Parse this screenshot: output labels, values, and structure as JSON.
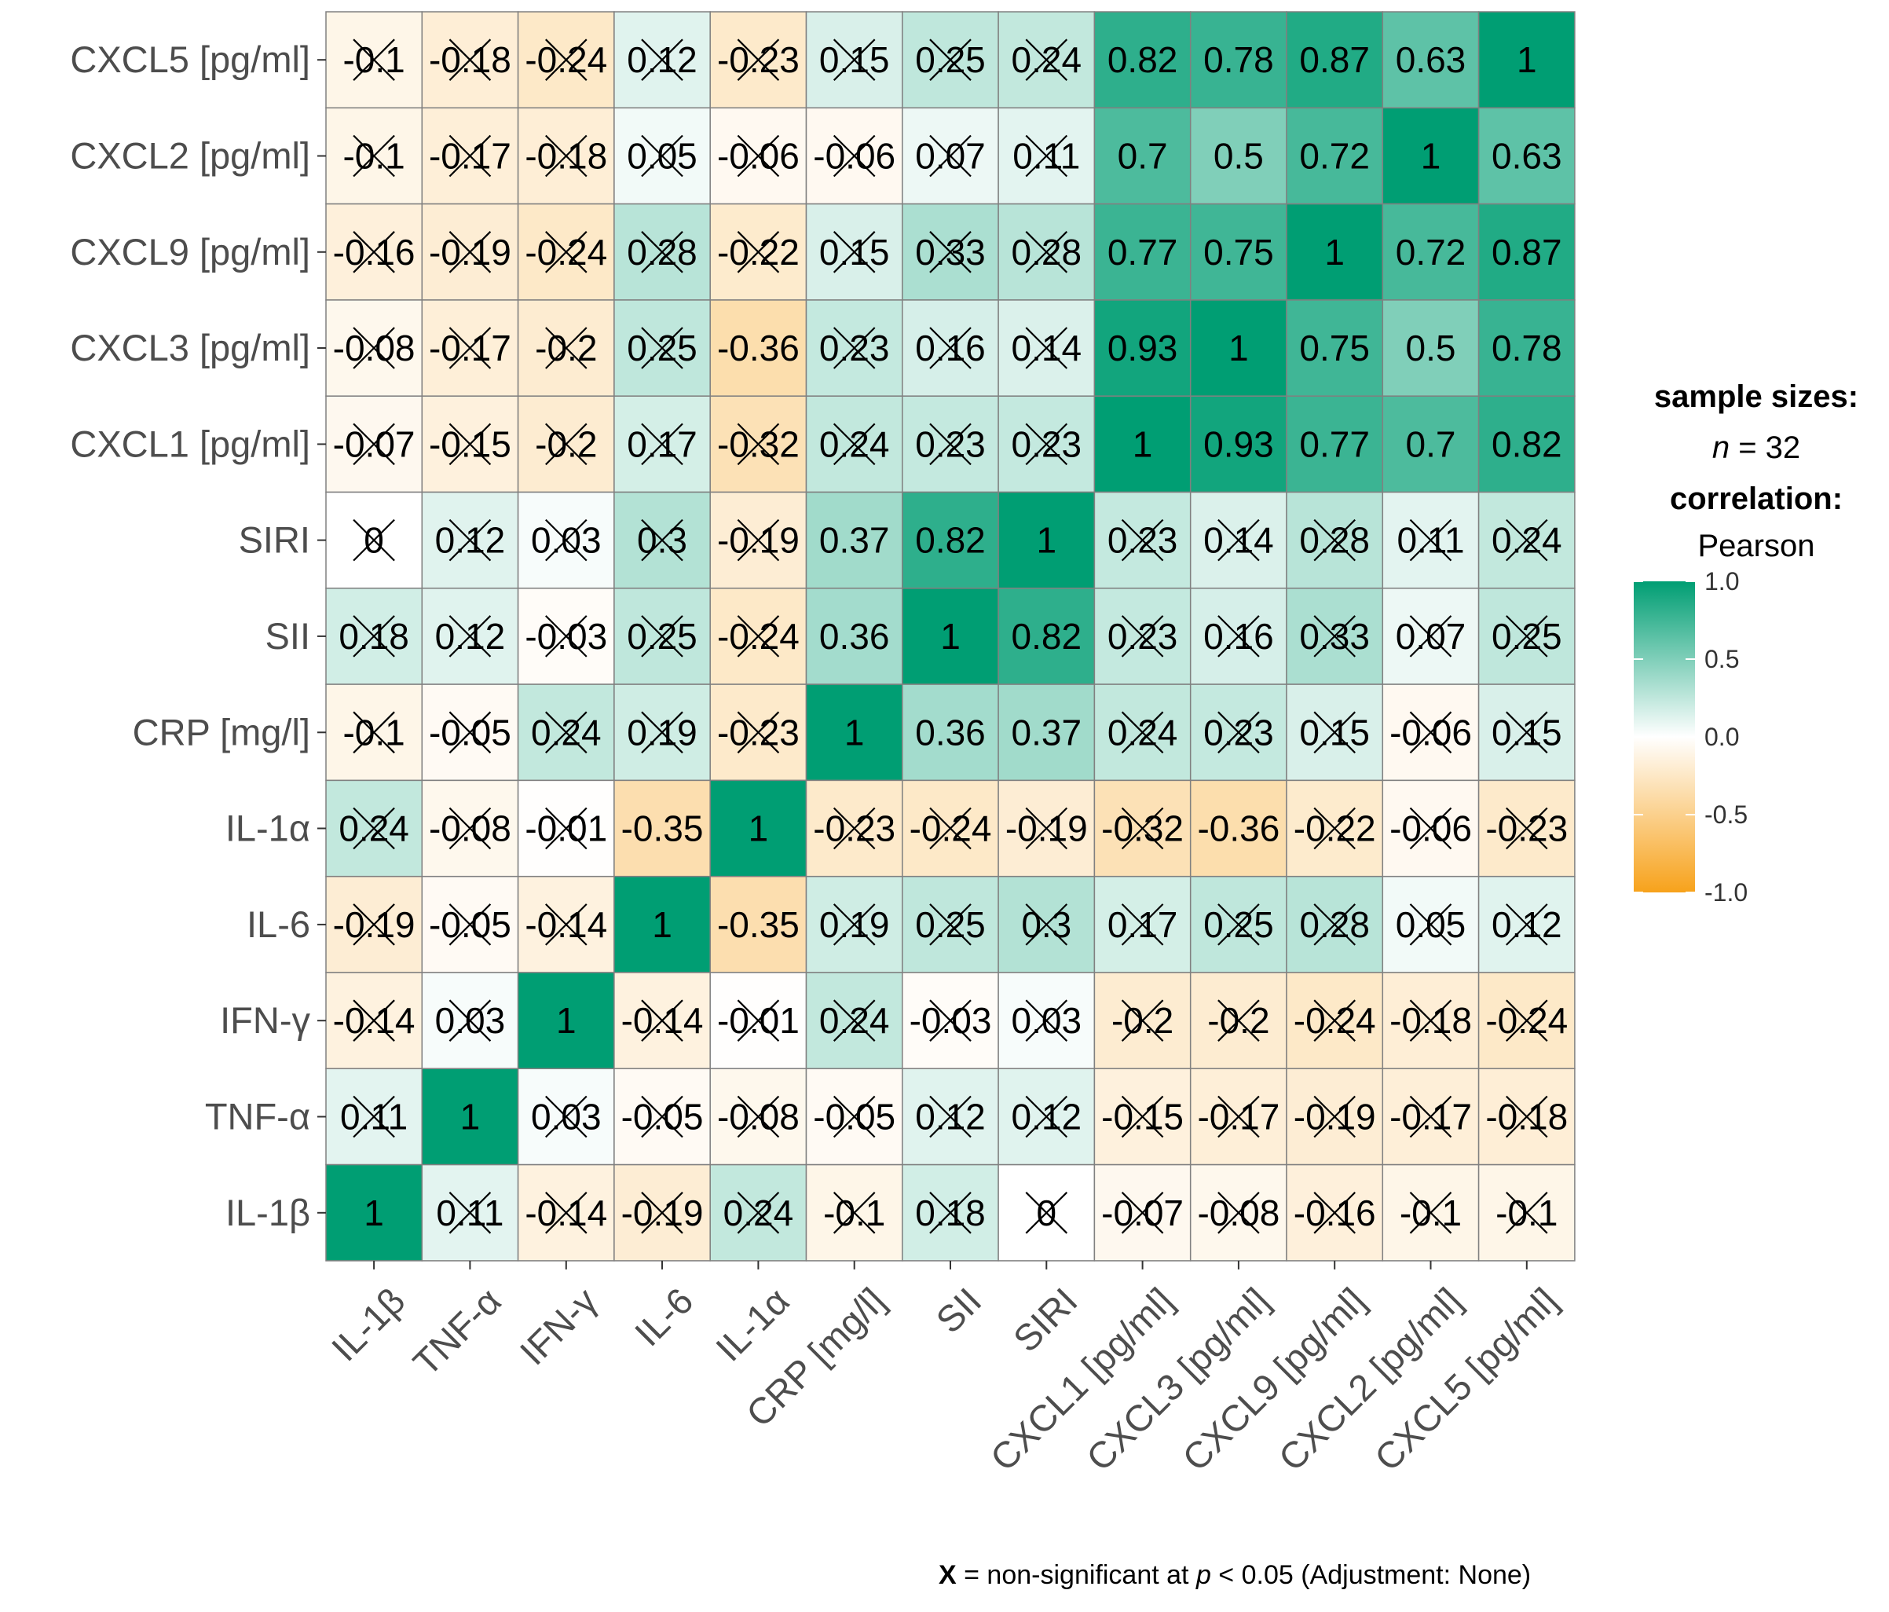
{
  "chart_data": {
    "type": "heatmap",
    "title": "",
    "variables": [
      "IL-1β",
      "TNF-α",
      "IFN-γ",
      "IL-6",
      "IL-1α",
      "CRP [mg/l]",
      "SII",
      "SIRI",
      "CXCL1 [pg/ml]",
      "CXCL3 [pg/ml]",
      "CXCL9 [pg/ml]",
      "CXCL2 [pg/ml]",
      "CXCL5 [pg/ml]"
    ],
    "x_order": [
      "IL-1β",
      "TNF-α",
      "IFN-γ",
      "IL-6",
      "IL-1α",
      "CRP [mg/l]",
      "SII",
      "SIRI",
      "CXCL1 [pg/ml]",
      "CXCL3 [pg/ml]",
      "CXCL9 [pg/ml]",
      "CXCL2 [pg/ml]",
      "CXCL5 [pg/ml]"
    ],
    "y_order_top_to_bottom": [
      "CXCL5 [pg/ml]",
      "CXCL2 [pg/ml]",
      "CXCL9 [pg/ml]",
      "CXCL3 [pg/ml]",
      "CXCL1 [pg/ml]",
      "SIRI",
      "SII",
      "CRP [mg/l]",
      "IL-1α",
      "IL-6",
      "IFN-γ",
      "TNF-α",
      "IL-1β"
    ],
    "matrix": [
      [
        1,
        0.11,
        -0.14,
        -0.19,
        0.24,
        -0.1,
        0.18,
        0,
        -0.07,
        -0.08,
        -0.16,
        -0.1,
        -0.1
      ],
      [
        0.11,
        1,
        0.03,
        -0.05,
        -0.08,
        -0.05,
        0.12,
        0.12,
        -0.15,
        -0.17,
        -0.19,
        -0.17,
        -0.18
      ],
      [
        -0.14,
        0.03,
        1,
        -0.14,
        -0.01,
        0.24,
        -0.03,
        0.03,
        -0.2,
        -0.2,
        -0.24,
        -0.18,
        -0.24
      ],
      [
        -0.19,
        -0.05,
        -0.14,
        1,
        -0.35,
        0.19,
        0.25,
        0.3,
        0.17,
        0.25,
        0.28,
        0.05,
        0.12
      ],
      [
        0.24,
        -0.08,
        -0.01,
        -0.35,
        1,
        -0.23,
        -0.24,
        -0.19,
        -0.32,
        -0.36,
        -0.22,
        -0.06,
        -0.23
      ],
      [
        -0.1,
        -0.05,
        0.24,
        0.19,
        -0.23,
        1,
        0.36,
        0.37,
        0.24,
        0.23,
        0.15,
        -0.06,
        0.15
      ],
      [
        0.18,
        0.12,
        -0.03,
        0.25,
        -0.24,
        0.36,
        1,
        0.82,
        0.23,
        0.16,
        0.33,
        0.07,
        0.25
      ],
      [
        0,
        0.12,
        0.03,
        0.3,
        -0.19,
        0.37,
        0.82,
        1,
        0.23,
        0.14,
        0.28,
        0.11,
        0.24
      ],
      [
        -0.07,
        -0.15,
        -0.2,
        0.17,
        -0.32,
        0.24,
        0.23,
        0.23,
        1,
        0.93,
        0.77,
        0.7,
        0.82
      ],
      [
        -0.08,
        -0.17,
        -0.2,
        0.25,
        -0.36,
        0.23,
        0.16,
        0.14,
        0.93,
        1,
        0.75,
        0.5,
        0.78
      ],
      [
        -0.16,
        -0.19,
        -0.24,
        0.28,
        -0.22,
        0.15,
        0.33,
        0.28,
        0.77,
        0.75,
        1,
        0.72,
        0.87
      ],
      [
        -0.1,
        -0.17,
        -0.18,
        0.05,
        -0.06,
        -0.06,
        0.07,
        0.11,
        0.7,
        0.5,
        0.72,
        1,
        0.63
      ],
      [
        -0.1,
        -0.18,
        -0.24,
        0.12,
        -0.23,
        0.15,
        0.25,
        0.24,
        0.82,
        0.78,
        0.87,
        0.63,
        1
      ]
    ],
    "display_labels": [
      [
        "1",
        "0.11",
        "-0.14",
        "-0.19",
        "0.24",
        "-0.1",
        "0.18",
        "0",
        "-0.07",
        "-0.08",
        "-0.16",
        "-0.1",
        "-0.1"
      ],
      [
        "0.11",
        "1",
        "0.03",
        "-0.05",
        "-0.08",
        "-0.05",
        "0.12",
        "0.12",
        "-0.15",
        "-0.17",
        "-0.19",
        "-0.17",
        "-0.18"
      ],
      [
        "-0.14",
        "0.03",
        "1",
        "-0.14",
        "-0.01",
        "0.24",
        "-0.03",
        "0.03",
        "-0.2",
        "-0.2",
        "-0.24",
        "-0.18",
        "-0.24"
      ],
      [
        "-0.19",
        "-0.05",
        "-0.14",
        "1",
        "-0.35",
        "0.19",
        "0.25",
        "0.3",
        "0.17",
        "0.25",
        "0.28",
        "0.05",
        "0.12"
      ],
      [
        "0.24",
        "-0.08",
        "-0.01",
        "-0.35",
        "1",
        "-0.23",
        "-0.24",
        "-0.19",
        "-0.32",
        "-0.36",
        "-0.22",
        "-0.06",
        "-0.23"
      ],
      [
        "-0.1",
        "-0.05",
        "0.24",
        "0.19",
        "-0.23",
        "1",
        "0.36",
        "0.37",
        "0.24",
        "0.23",
        "0.15",
        "-0.06",
        "0.15"
      ],
      [
        "0.18",
        "0.12",
        "-0.03",
        "0.25",
        "-0.24",
        "0.36",
        "1",
        "0.82",
        "0.23",
        "0.16",
        "0.33",
        "0.07",
        "0.25"
      ],
      [
        "0",
        "0.12",
        "0.03",
        "0.3",
        "-0.19",
        "0.37",
        "0.82",
        "1",
        "0.23",
        "0.14",
        "0.28",
        "0.11",
        "0.24"
      ],
      [
        "-0.07",
        "-0.15",
        "-0.2",
        "0.17",
        "-0.32",
        "0.24",
        "0.23",
        "0.23",
        "1",
        "0.93",
        "0.77",
        "0.7",
        "0.82"
      ],
      [
        "-0.08",
        "-0.17",
        "-0.2",
        "0.25",
        "-0.36",
        "0.23",
        "0.16",
        "0.14",
        "0.93",
        "1",
        "0.75",
        "0.5",
        "0.78"
      ],
      [
        "-0.16",
        "-0.19",
        "-0.24",
        "0.28",
        "-0.22",
        "0.15",
        "0.33",
        "0.28",
        "0.77",
        "0.75",
        "1",
        "0.72",
        "0.87"
      ],
      [
        "-0.1",
        "-0.17",
        "-0.18",
        "0.05",
        "-0.06",
        "-0.06",
        "0.07",
        "0.11",
        "0.7",
        "0.5",
        "0.72",
        "1",
        "0.63"
      ],
      [
        "-0.1",
        "-0.18",
        "-0.24",
        "0.12",
        "-0.23",
        "0.15",
        "0.25",
        "0.24",
        "0.82",
        "0.78",
        "0.87",
        "0.63",
        "1"
      ]
    ],
    "significant": [
      [
        true,
        false,
        false,
        false,
        false,
        false,
        false,
        false,
        false,
        false,
        false,
        false,
        false
      ],
      [
        false,
        true,
        false,
        false,
        false,
        false,
        false,
        false,
        false,
        false,
        false,
        false,
        false
      ],
      [
        false,
        false,
        true,
        false,
        false,
        false,
        false,
        false,
        false,
        false,
        false,
        false,
        false
      ],
      [
        false,
        false,
        false,
        true,
        true,
        false,
        false,
        false,
        false,
        false,
        false,
        false,
        false
      ],
      [
        false,
        false,
        false,
        true,
        true,
        false,
        false,
        false,
        false,
        true,
        false,
        false,
        false
      ],
      [
        false,
        false,
        false,
        false,
        false,
        true,
        true,
        true,
        false,
        false,
        false,
        false,
        false
      ],
      [
        false,
        false,
        false,
        false,
        false,
        true,
        true,
        true,
        false,
        false,
        false,
        false,
        false
      ],
      [
        false,
        false,
        false,
        false,
        false,
        true,
        true,
        true,
        false,
        false,
        false,
        false,
        false
      ],
      [
        false,
        false,
        false,
        false,
        false,
        false,
        false,
        false,
        true,
        true,
        true,
        true,
        true
      ],
      [
        false,
        false,
        false,
        false,
        true,
        false,
        false,
        false,
        true,
        true,
        true,
        true,
        true
      ],
      [
        false,
        false,
        false,
        false,
        false,
        false,
        false,
        false,
        true,
        true,
        true,
        true,
        true
      ],
      [
        false,
        false,
        false,
        false,
        false,
        false,
        false,
        false,
        true,
        true,
        true,
        true,
        true
      ],
      [
        false,
        false,
        false,
        false,
        false,
        false,
        false,
        false,
        true,
        true,
        true,
        true,
        true
      ]
    ],
    "colors": {
      "low": "#F7A21B",
      "mid": "#FFFFFF",
      "high": "#009E73",
      "grid": "#808080",
      "text": "#000000",
      "axis_text": "#4D4D4D"
    },
    "legend": {
      "title_sample_sizes": "sample sizes:",
      "n_prefix": "n",
      "n_value": " = 32",
      "title_correlation": "correlation:",
      "method": "Pearson",
      "scale_min": -1,
      "scale_max": 1,
      "ticks": [
        "1.0",
        "0.5",
        "0.0",
        "-0.5",
        "-1.0"
      ],
      "placement": "right"
    },
    "footnote": {
      "marker": "X",
      "text_before_p": " = non-significant at ",
      "p_symbol": "p",
      "text_after_p": " < 0.05 (Adjustment: None)"
    }
  }
}
